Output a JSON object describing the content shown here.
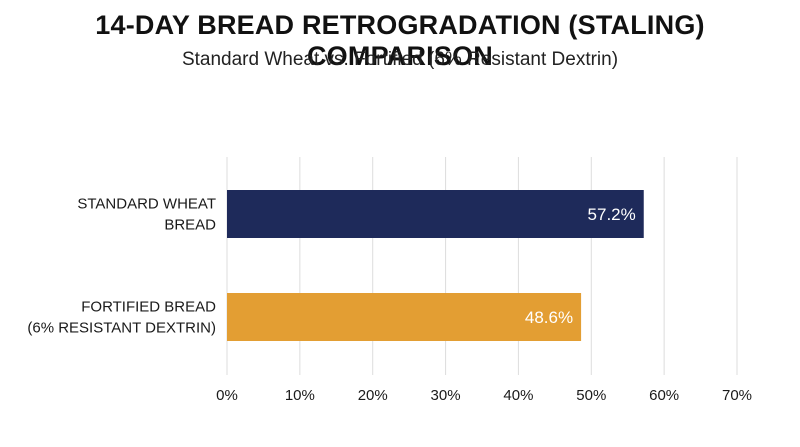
{
  "chart_data": {
    "type": "bar",
    "orientation": "horizontal",
    "title": "14-DAY BREAD RETROGRADATION (STALING) COMPARISON",
    "subtitle": "Standard Wheat vs. Fortified (6% Resistant Dextrin)",
    "categories": [
      [
        "STANDARD WHEAT",
        "BREAD"
      ],
      [
        "FORTIFIED BREAD",
        "(6% RESISTANT DEXTRIN)"
      ]
    ],
    "values": [
      57.2,
      48.6
    ],
    "value_labels": [
      "57.2%",
      "48.6%"
    ],
    "bar_colors": [
      "#1e2a5a",
      "#e39e33"
    ],
    "xlim": [
      0,
      70
    ],
    "x_ticks": [
      0,
      10,
      20,
      30,
      40,
      50,
      60,
      70
    ],
    "x_tick_labels": [
      "0%",
      "10%",
      "20%",
      "30%",
      "40%",
      "50%",
      "60%",
      "70%"
    ],
    "grid": true,
    "legend": "none"
  }
}
